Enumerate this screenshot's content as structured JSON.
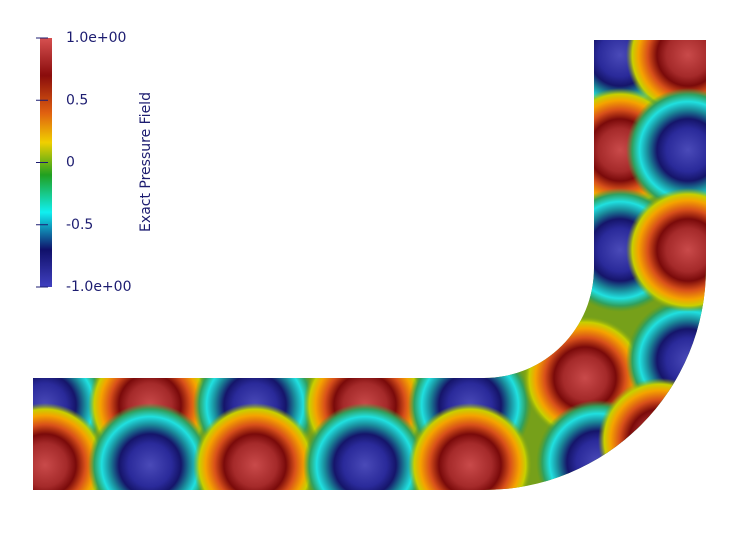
{
  "chart_data": {
    "type": "field",
    "title": "Exact Pressure Field",
    "clim": [
      -1,
      1
    ],
    "cticks": [
      {
        "value": 1,
        "label": "1.0e+00"
      },
      0.5,
      0,
      -0.5,
      {
        "value": -1,
        "label": "-1.0e+00"
      }
    ]
  }
}
